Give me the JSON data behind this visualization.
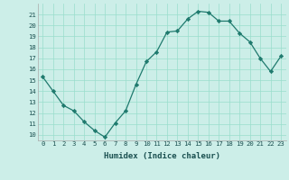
{
  "x": [
    0,
    1,
    2,
    3,
    4,
    5,
    6,
    7,
    8,
    9,
    10,
    11,
    12,
    13,
    14,
    15,
    16,
    17,
    18,
    19,
    20,
    21,
    22,
    23
  ],
  "y": [
    15.3,
    14.0,
    12.7,
    12.2,
    11.2,
    10.4,
    9.8,
    11.1,
    12.2,
    14.6,
    16.7,
    17.6,
    19.4,
    19.5,
    20.6,
    21.3,
    21.2,
    20.4,
    20.4,
    19.3,
    18.5,
    17.0,
    15.8,
    17.2
  ],
  "xlabel": "Humidex (Indice chaleur)",
  "ylim": [
    9.5,
    22.0
  ],
  "xlim": [
    -0.5,
    23.5
  ],
  "line_color": "#1f7a6e",
  "marker_color": "#1f7a6e",
  "bg_color": "#cceee8",
  "grid_color": "#99ddcc",
  "yticks": [
    10,
    11,
    12,
    13,
    14,
    15,
    16,
    17,
    18,
    19,
    20,
    21
  ],
  "xticks": [
    0,
    1,
    2,
    3,
    4,
    5,
    6,
    7,
    8,
    9,
    10,
    11,
    12,
    13,
    14,
    15,
    16,
    17,
    18,
    19,
    20,
    21,
    22,
    23
  ],
  "tick_fontsize": 5.2,
  "xlabel_fontsize": 6.5
}
